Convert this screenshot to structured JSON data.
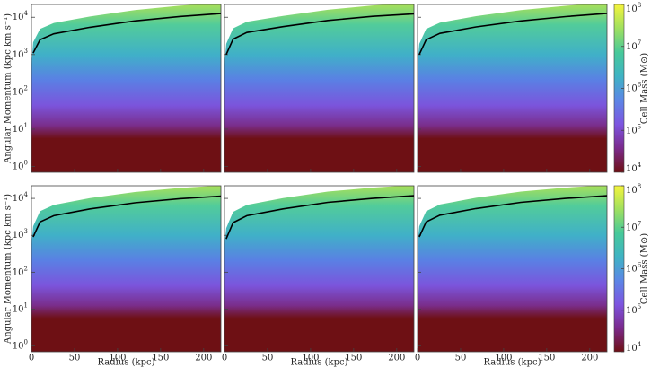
{
  "chart_data": [
    {
      "type": "line",
      "ylabel": "Angular Momentum (kpc km s⁻¹)",
      "log_y": true,
      "x": [
        2,
        10,
        26,
        68,
        120,
        172,
        220
      ],
      "values": [
        1100,
        2500,
        3600,
        5400,
        8000,
        10500,
        12600
      ],
      "color": "#000000",
      "xlim": [
        0,
        220
      ],
      "xticks": [
        0,
        50,
        100,
        150,
        200
      ],
      "ylim": [
        0.7,
        22000
      ],
      "yticks": [
        {
          "value": 1,
          "label": "10",
          "exponent": "0"
        },
        {
          "value": 10,
          "label": "10",
          "exponent": "1"
        },
        {
          "value": 100,
          "label": "10",
          "exponent": "2"
        },
        {
          "value": 1000,
          "label": "10",
          "exponent": "3"
        },
        {
          "value": 10000,
          "label": "10",
          "exponent": "4"
        }
      ]
    },
    {
      "type": "line",
      "log_y": true,
      "x": [
        2,
        10,
        26,
        68,
        120,
        172,
        220
      ],
      "values": [
        1000,
        2600,
        3900,
        5600,
        8200,
        10600,
        12400
      ],
      "color": "#000000",
      "xlim": [
        0,
        220
      ],
      "xticks": [
        0,
        50,
        100,
        150,
        200
      ],
      "ylim": [
        0.7,
        22000
      ],
      "yticks": [
        1,
        10,
        100,
        1000,
        10000
      ]
    },
    {
      "type": "line",
      "log_y": true,
      "x": [
        2,
        10,
        26,
        68,
        120,
        172,
        220
      ],
      "values": [
        1000,
        2500,
        3700,
        5500,
        8000,
        10400,
        12700
      ],
      "color": "#000000",
      "xlim": [
        0,
        220
      ],
      "xticks": [
        0,
        50,
        100,
        150,
        200
      ],
      "ylim": [
        0.7,
        22000
      ],
      "yticks": [
        1,
        10,
        100,
        1000,
        10000
      ],
      "colorbar_label": "Cell Mass (M⊙)",
      "colorbar_lim": [
        10000,
        100000000
      ],
      "colorbar_ticks": [
        {
          "value": 10000,
          "label": "10",
          "exponent": "4"
        },
        {
          "value": 100000,
          "label": "10",
          "exponent": "5"
        },
        {
          "value": 1000000,
          "label": "10",
          "exponent": "6"
        },
        {
          "value": 10000000,
          "label": "10",
          "exponent": "7"
        },
        {
          "value": 100000000,
          "label": "10",
          "exponent": "8"
        }
      ],
      "colormap": [
        "#6e1014",
        "#7b2a8c",
        "#7d55e0",
        "#5c86e6",
        "#3fb3c4",
        "#47c99a",
        "#9fe060",
        "#f4f43c"
      ]
    },
    {
      "type": "line",
      "ylabel": "Angular Momentum (kpc km s⁻¹)",
      "xlabel": "Radius (kpc)",
      "log_y": true,
      "x": [
        2,
        10,
        26,
        68,
        120,
        172,
        220
      ],
      "values": [
        900,
        2300,
        3400,
        5200,
        7600,
        9800,
        11500
      ],
      "color": "#000000",
      "xlim": [
        0,
        220
      ],
      "xticks": [
        0,
        50,
        100,
        150,
        200
      ],
      "ylim": [
        0.7,
        22000
      ],
      "yticks": [
        {
          "value": 1,
          "label": "10",
          "exponent": "0"
        },
        {
          "value": 10,
          "label": "10",
          "exponent": "1"
        },
        {
          "value": 100,
          "label": "10",
          "exponent": "2"
        },
        {
          "value": 1000,
          "label": "10",
          "exponent": "3"
        },
        {
          "value": 10000,
          "label": "10",
          "exponent": "4"
        }
      ]
    },
    {
      "type": "line",
      "xlabel": "Radius (kpc)",
      "log_y": true,
      "x": [
        2,
        10,
        26,
        68,
        120,
        172,
        220
      ],
      "values": [
        800,
        2200,
        3400,
        5200,
        7800,
        10000,
        11800
      ],
      "color": "#000000",
      "xlim": [
        0,
        220
      ],
      "xticks": [
        0,
        50,
        100,
        150,
        200
      ],
      "ylim": [
        0.7,
        22000
      ],
      "yticks": [
        1,
        10,
        100,
        1000,
        10000
      ]
    },
    {
      "type": "line",
      "xlabel": "Radius (kpc)",
      "log_y": true,
      "x": [
        2,
        10,
        26,
        68,
        120,
        172,
        220
      ],
      "values": [
        900,
        2300,
        3500,
        5300,
        7800,
        10000,
        11800
      ],
      "color": "#000000",
      "xlim": [
        0,
        220
      ],
      "xticks": [
        0,
        50,
        100,
        150,
        200
      ],
      "ylim": [
        0.7,
        22000
      ],
      "yticks": [
        1,
        10,
        100,
        1000,
        10000
      ],
      "colorbar_label": "Cell Mass (M⊙)",
      "colorbar_lim": [
        10000,
        100000000
      ],
      "colorbar_ticks": [
        {
          "value": 10000,
          "label": "10",
          "exponent": "4"
        },
        {
          "value": 100000,
          "label": "10",
          "exponent": "5"
        },
        {
          "value": 1000000,
          "label": "10",
          "exponent": "6"
        },
        {
          "value": 10000000,
          "label": "10",
          "exponent": "7"
        },
        {
          "value": 100000000,
          "label": "10",
          "exponent": "8"
        }
      ],
      "colormap": [
        "#6e1014",
        "#7b2a8c",
        "#7d55e0",
        "#5c86e6",
        "#3fb3c4",
        "#47c99a",
        "#9fe060",
        "#f4f43c"
      ]
    }
  ]
}
